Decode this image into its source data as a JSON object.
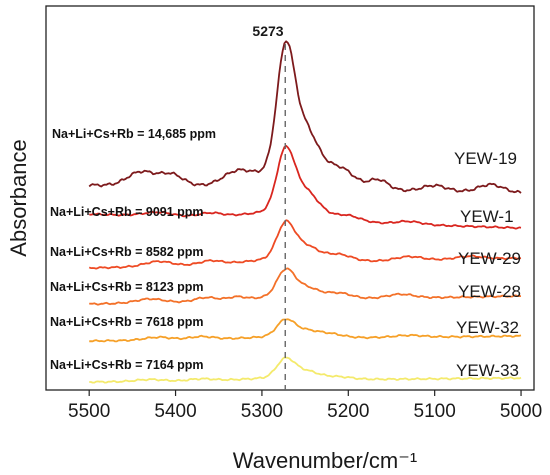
{
  "chart_data": {
    "type": "line",
    "xlabel": "Wavenumber/cm⁻¹",
    "ylabel": "Absorbance",
    "xlim": [
      5550,
      4985
    ],
    "x_reversed": true,
    "xticks": [
      5500,
      5400,
      5300,
      5200,
      5100,
      5000
    ],
    "xtick_labels": [
      "5500",
      "5400",
      "5300",
      "5200",
      "5100",
      "5000"
    ],
    "y_ticks_shown": false,
    "grid": false,
    "legend": "none",
    "peak": {
      "x": 5273,
      "label": "5273"
    },
    "series": [
      {
        "name": "YEW-19",
        "annotation": "Na+Li+Cs+Rb = 14,685 ppm",
        "color": "#7d1a1c"
      },
      {
        "name": "YEW-1",
        "annotation": "Na+Li+Cs+Rb = 9091 ppm",
        "color": "#d9261f"
      },
      {
        "name": "YEW-29",
        "annotation": "Na+Li+Cs+Rb = 8582 ppm",
        "color": "#ee4b24"
      },
      {
        "name": "YEW-28",
        "annotation": "Na+Li+Cs+Rb = 8123 ppm",
        "color": "#f37129"
      },
      {
        "name": "YEW-32",
        "annotation": "Na+Li+Cs+Rb = 7618 ppm",
        "color": "#f6a028"
      },
      {
        "name": "YEW-33",
        "annotation": "Na+Li+Cs+Rb = 7164 ppm",
        "color": "#f4ea6c"
      }
    ]
  }
}
